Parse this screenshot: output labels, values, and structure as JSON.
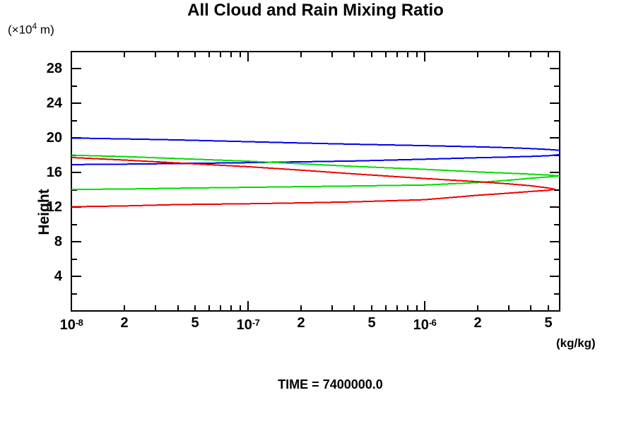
{
  "title": "All Cloud and Rain Mixing Ratio",
  "y_units": {
    "base": "(×10",
    "exp": "4",
    "rest": " m)"
  },
  "x_units": "(kg/kg)",
  "footer": "TIME = 7400000.0",
  "colors": {
    "axis": "#000000",
    "blue": "#0000ee",
    "green": "#00dd00",
    "red": "#ee0000"
  },
  "chart_data": {
    "type": "line",
    "title": "All Cloud and Rain Mixing Ratio",
    "xlabel": "(kg/kg)",
    "ylabel": "Height",
    "x_scale": "log",
    "xlim": [
      1e-08,
      5.81e-06
    ],
    "ylim": [
      0,
      30
    ],
    "grid": "off",
    "legend": "none",
    "y_major_ticks": [
      28,
      24,
      20,
      16,
      12,
      8,
      4
    ],
    "y_minor_ticks": [
      30,
      26,
      22,
      18,
      14,
      10,
      6,
      2
    ],
    "x_decades": [
      1e-08,
      1e-07,
      1e-06
    ],
    "x_minor_multiples": [
      2,
      3,
      4,
      5,
      6,
      7,
      8,
      9
    ],
    "x_labeled_ticks": [
      {
        "v": 1e-08,
        "base": "10",
        "exp": "-8"
      },
      {
        "v": 2e-08,
        "base": "2"
      },
      {
        "v": 5e-08,
        "base": "5"
      },
      {
        "v": 1e-07,
        "base": "10",
        "exp": "-7"
      },
      {
        "v": 2e-07,
        "base": "2"
      },
      {
        "v": 5e-07,
        "base": "5"
      },
      {
        "v": 1e-06,
        "base": "10",
        "exp": "-6"
      },
      {
        "v": 2e-06,
        "base": "2"
      },
      {
        "v": 5e-06,
        "base": "5"
      }
    ],
    "series": [
      {
        "name": "blue-profile",
        "color": "#0000ee",
        "segments": [
          [
            [
              1e-08,
              20.0
            ],
            [
              2e-08,
              19.9
            ],
            [
              4e-08,
              19.78
            ],
            [
              1e-07,
              19.58
            ],
            [
              2e-07,
              19.42
            ],
            [
              4e-07,
              19.28
            ],
            [
              1e-06,
              19.12
            ],
            [
              2e-06,
              18.98
            ],
            [
              3e-06,
              18.88
            ],
            [
              4e-06,
              18.78
            ],
            [
              5e-06,
              18.68
            ],
            [
              5.81e-06,
              18.58
            ]
          ],
          [
            [
              1e-08,
              16.93
            ],
            [
              2e-08,
              16.98
            ],
            [
              4e-08,
              17.05
            ],
            [
              1e-07,
              17.15
            ],
            [
              2e-07,
              17.25
            ],
            [
              4e-07,
              17.35
            ],
            [
              1e-06,
              17.55
            ],
            [
              2e-06,
              17.72
            ],
            [
              3e-06,
              17.8
            ],
            [
              4e-06,
              17.88
            ],
            [
              5e-06,
              17.95
            ],
            [
              5.81e-06,
              18.08
            ]
          ]
        ]
      },
      {
        "name": "green-profile",
        "color": "#00dd00",
        "segments": [
          [
            [
              1e-08,
              18.02
            ],
            [
              2e-08,
              17.85
            ],
            [
              4e-08,
              17.62
            ],
            [
              1e-07,
              17.32
            ],
            [
              2e-07,
              17.02
            ],
            [
              4e-07,
              16.72
            ],
            [
              1e-06,
              16.38
            ],
            [
              2e-06,
              16.08
            ],
            [
              3e-06,
              15.93
            ],
            [
              4e-06,
              15.82
            ],
            [
              5e-06,
              15.72
            ],
            [
              5.81e-06,
              15.62
            ],
            [
              5e-06,
              15.5
            ],
            [
              4e-06,
              15.35
            ],
            [
              3e-06,
              15.12
            ],
            [
              2e-06,
              14.85
            ],
            [
              1e-06,
              14.57
            ],
            [
              4e-07,
              14.45
            ],
            [
              2e-07,
              14.38
            ],
            [
              1e-07,
              14.3
            ],
            [
              4e-08,
              14.2
            ],
            [
              2e-08,
              14.1
            ],
            [
              1e-08,
              14.05
            ]
          ]
        ]
      },
      {
        "name": "red-profile",
        "color": "#ee0000",
        "segments": [
          [
            [
              1e-08,
              17.75
            ],
            [
              2e-08,
              17.45
            ],
            [
              4e-08,
              17.12
            ],
            [
              1e-07,
              16.68
            ],
            [
              2e-07,
              16.28
            ],
            [
              4e-07,
              15.85
            ],
            [
              1e-06,
              15.32
            ],
            [
              2e-06,
              14.95
            ],
            [
              3e-06,
              14.7
            ],
            [
              4e-06,
              14.48
            ],
            [
              5e-06,
              14.22
            ],
            [
              5.45e-06,
              14.08
            ],
            [
              5e-06,
              13.95
            ],
            [
              4e-06,
              13.82
            ],
            [
              3e-06,
              13.63
            ],
            [
              2e-06,
              13.38
            ],
            [
              1e-06,
              12.87
            ],
            [
              4e-07,
              12.62
            ],
            [
              2e-07,
              12.5
            ],
            [
              1e-07,
              12.4
            ],
            [
              4e-08,
              12.3
            ],
            [
              2e-08,
              12.15
            ],
            [
              1e-08,
              12.05
            ]
          ]
        ]
      }
    ]
  }
}
